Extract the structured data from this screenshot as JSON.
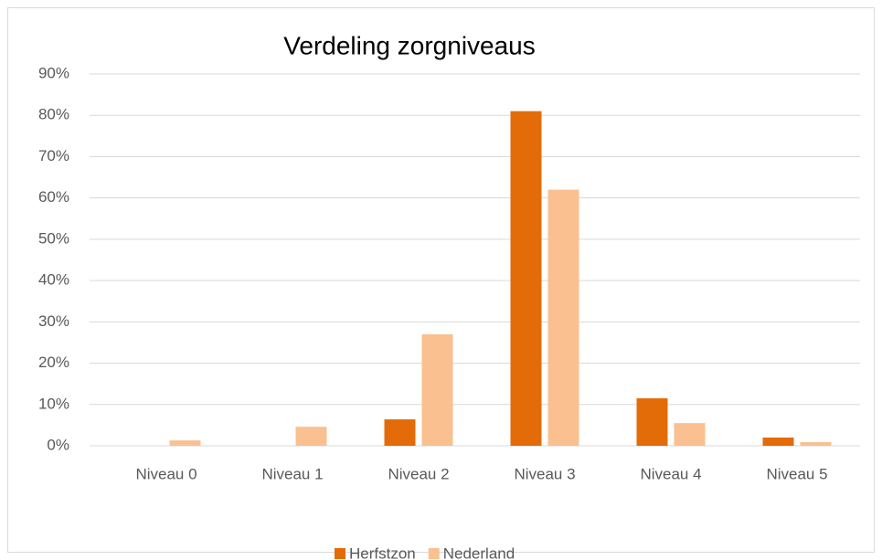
{
  "chart_data": {
    "type": "bar",
    "title": "Verdeling zorgniveaus",
    "categories": [
      "Niveau 0",
      "Niveau 1",
      "Niveau 2",
      "Niveau 3",
      "Niveau 4",
      "Niveau 5"
    ],
    "series": [
      {
        "name": "Herfstzon",
        "color": "#e36c09",
        "values": [
          0,
          0,
          6.4,
          81,
          11.5,
          2.0
        ]
      },
      {
        "name": "Nederland",
        "color": "#fac090",
        "values": [
          1.3,
          4.6,
          27,
          62,
          5.5,
          0.9
        ]
      }
    ],
    "ylim": [
      0,
      90
    ],
    "yticks": [
      {
        "value": 0,
        "label": "0%"
      },
      {
        "value": 10,
        "label": "10%"
      },
      {
        "value": 20,
        "label": "20%"
      },
      {
        "value": 30,
        "label": "30%"
      },
      {
        "value": 40,
        "label": "40%"
      },
      {
        "value": 50,
        "label": "50%"
      },
      {
        "value": 60,
        "label": "60%"
      },
      {
        "value": 70,
        "label": "70%"
      },
      {
        "value": 80,
        "label": "80%"
      },
      {
        "value": 90,
        "label": "90%"
      }
    ],
    "grid": true,
    "legend": "bottom"
  }
}
